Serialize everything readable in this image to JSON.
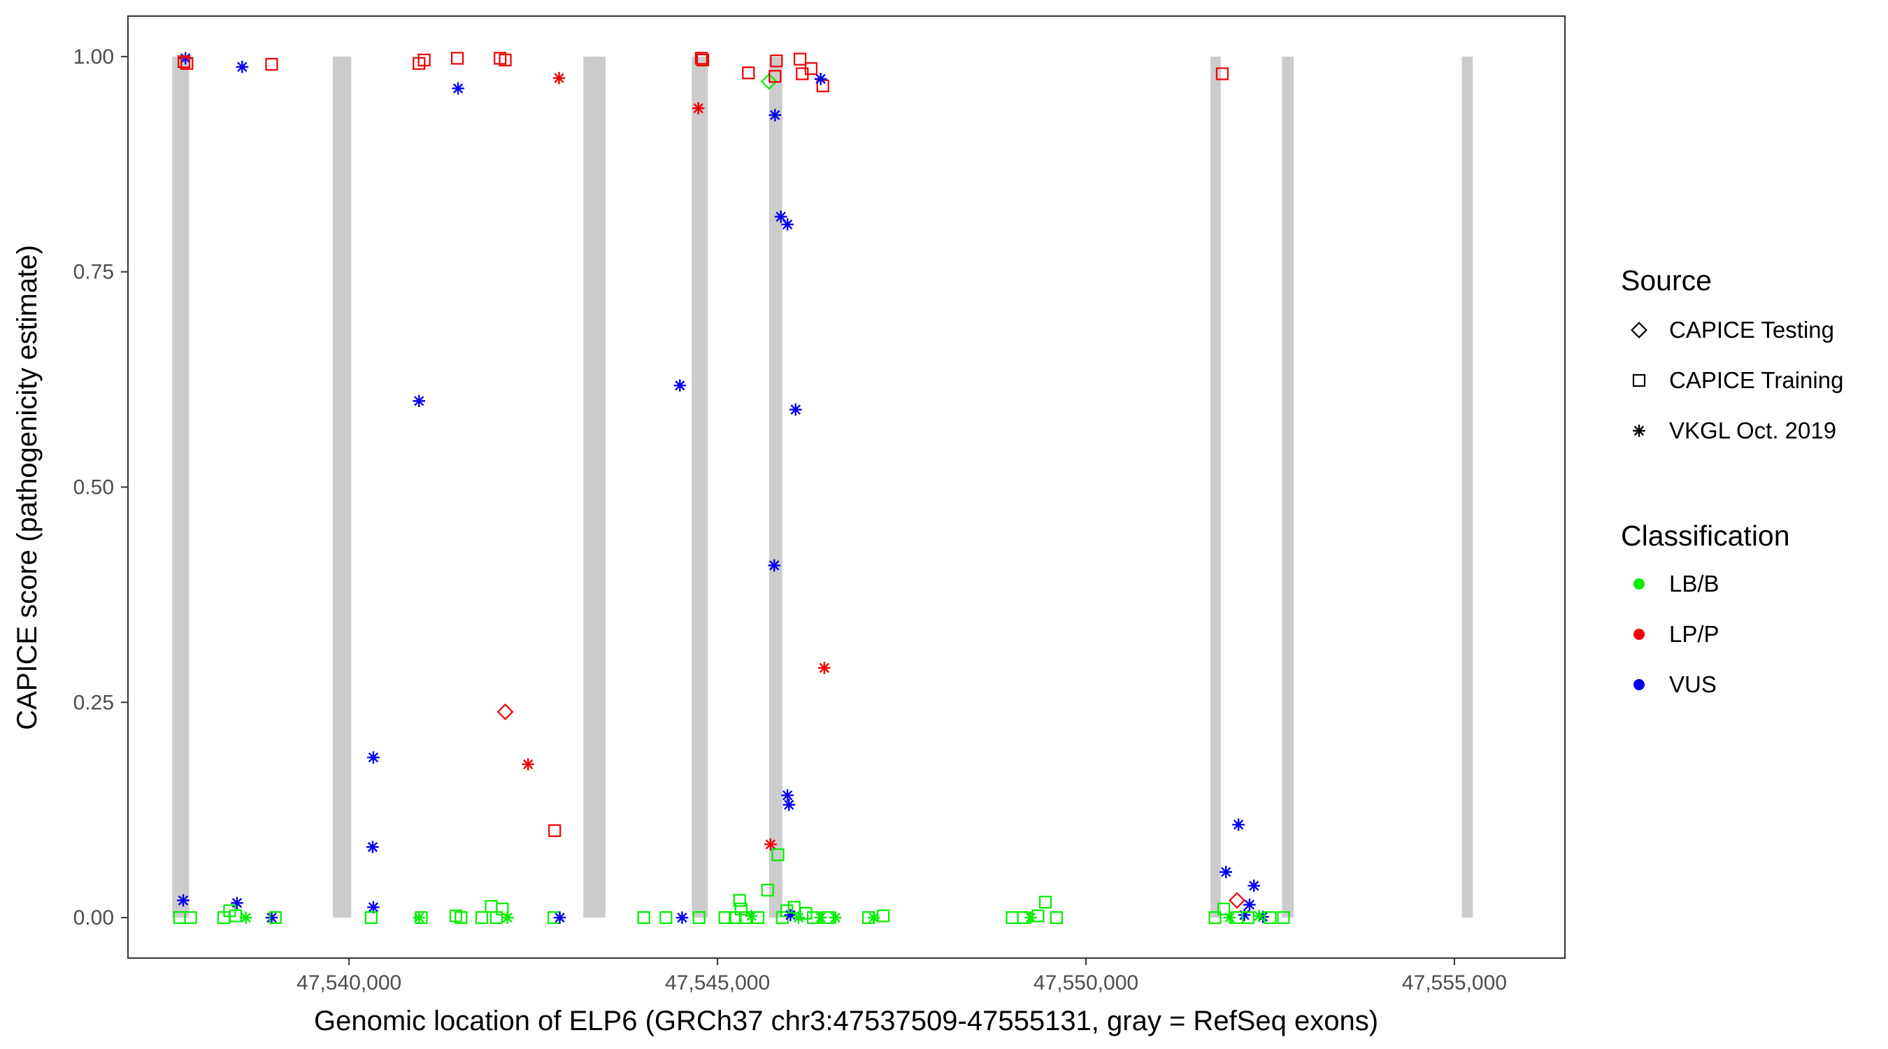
{
  "chart_data": {
    "type": "scatter",
    "title": "",
    "xlabel": "Genomic location of ELP6 (GRCh37 chr3:47537509-47555131, gray = RefSeq exons)",
    "ylabel": "CAPICE score (pathogenicity estimate)",
    "xlim": [
      47537000,
      47556500
    ],
    "ylim": [
      -0.047,
      1.047
    ],
    "x_ticks": [
      47540000,
      47545000,
      47550000,
      47555000
    ],
    "x_tick_labels": [
      "47,540,000",
      "47,545,000",
      "47,550,000",
      "47,555,000"
    ],
    "y_ticks": [
      0,
      0.25,
      0.5,
      0.75,
      1.0
    ],
    "y_tick_labels": [
      "0.00",
      "0.25",
      "0.50",
      "0.75",
      "1.00"
    ],
    "grid": false,
    "exons": [
      [
        47537600,
        47537830
      ],
      [
        47539780,
        47540030
      ],
      [
        47543180,
        47543480
      ],
      [
        47544650,
        47544870
      ],
      [
        47545700,
        47545880
      ],
      [
        47551690,
        47551830
      ],
      [
        47552660,
        47552820
      ],
      [
        47555100,
        47555250
      ]
    ],
    "legend": {
      "position": "right",
      "source_title": "Source",
      "source_items": [
        {
          "label": "CAPICE Testing",
          "shape": "diamond"
        },
        {
          "label": "CAPICE Training",
          "shape": "square"
        },
        {
          "label": "VKGL Oct. 2019",
          "shape": "asterisk"
        }
      ],
      "class_title": "Classification",
      "class_items": [
        {
          "label": "LB/B",
          "color": "#00ee00"
        },
        {
          "label": "LP/P",
          "color": "#ee0000"
        },
        {
          "label": "VUS",
          "color": "#0000ee"
        }
      ]
    },
    "colors": {
      "LB/B": "#00ee00",
      "LP/P": "#ee0000",
      "VUS": "#0000ee",
      "exon": "#cccccc"
    },
    "points": [
      {
        "x": 47537780,
        "y": 0.998,
        "s": "VKGL",
        "c": "VUS"
      },
      {
        "x": 47537760,
        "y": 0.994,
        "s": "Training",
        "c": "LP/P"
      },
      {
        "x": 47537800,
        "y": 0.992,
        "s": "Training",
        "c": "LP/P"
      },
      {
        "x": 47538550,
        "y": 0.988,
        "s": "VKGL",
        "c": "VUS"
      },
      {
        "x": 47538950,
        "y": 0.991,
        "s": "Training",
        "c": "LP/P"
      },
      {
        "x": 47540950,
        "y": 0.992,
        "s": "Training",
        "c": "LP/P"
      },
      {
        "x": 47541020,
        "y": 0.996,
        "s": "Training",
        "c": "LP/P"
      },
      {
        "x": 47541470,
        "y": 0.998,
        "s": "Training",
        "c": "LP/P"
      },
      {
        "x": 47541480,
        "y": 0.963,
        "s": "VKGL",
        "c": "VUS"
      },
      {
        "x": 47542050,
        "y": 0.998,
        "s": "Training",
        "c": "LP/P"
      },
      {
        "x": 47542120,
        "y": 0.996,
        "s": "Training",
        "c": "LP/P"
      },
      {
        "x": 47542850,
        "y": 0.975,
        "s": "VKGL",
        "c": "LP/P"
      },
      {
        "x": 47544780,
        "y": 0.998,
        "s": "Training",
        "c": "LP/P"
      },
      {
        "x": 47544800,
        "y": 0.996,
        "s": "Training",
        "c": "LP/P"
      },
      {
        "x": 47544740,
        "y": 0.94,
        "s": "VKGL",
        "c": "LP/P"
      },
      {
        "x": 47545420,
        "y": 0.981,
        "s": "Training",
        "c": "LP/P"
      },
      {
        "x": 47545700,
        "y": 0.971,
        "s": "Testing",
        "c": "LB/B"
      },
      {
        "x": 47545780,
        "y": 0.977,
        "s": "Training",
        "c": "LP/P"
      },
      {
        "x": 47545800,
        "y": 0.995,
        "s": "Training",
        "c": "LP/P"
      },
      {
        "x": 47546120,
        "y": 0.997,
        "s": "Training",
        "c": "LP/P"
      },
      {
        "x": 47546150,
        "y": 0.98,
        "s": "Training",
        "c": "LP/P"
      },
      {
        "x": 47546270,
        "y": 0.986,
        "s": "Training",
        "c": "LP/P"
      },
      {
        "x": 47546430,
        "y": 0.966,
        "s": "Training",
        "c": "LP/P"
      },
      {
        "x": 47546400,
        "y": 0.974,
        "s": "VKGL",
        "c": "VUS"
      },
      {
        "x": 47545780,
        "y": 0.932,
        "s": "VKGL",
        "c": "VUS"
      },
      {
        "x": 47545860,
        "y": 0.814,
        "s": "VKGL",
        "c": "VUS"
      },
      {
        "x": 47545950,
        "y": 0.805,
        "s": "VKGL",
        "c": "VUS"
      },
      {
        "x": 47551850,
        "y": 0.98,
        "s": "Training",
        "c": "LP/P"
      },
      {
        "x": 47540950,
        "y": 0.6,
        "s": "VKGL",
        "c": "VUS"
      },
      {
        "x": 47544490,
        "y": 0.618,
        "s": "VKGL",
        "c": "VUS"
      },
      {
        "x": 47546060,
        "y": 0.59,
        "s": "VKGL",
        "c": "VUS"
      },
      {
        "x": 47545770,
        "y": 0.409,
        "s": "VKGL",
        "c": "VUS"
      },
      {
        "x": 47546450,
        "y": 0.29,
        "s": "VKGL",
        "c": "LP/P"
      },
      {
        "x": 47542120,
        "y": 0.239,
        "s": "Testing",
        "c": "LP/P"
      },
      {
        "x": 47540330,
        "y": 0.186,
        "s": "VKGL",
        "c": "VUS"
      },
      {
        "x": 47542430,
        "y": 0.178,
        "s": "VKGL",
        "c": "LP/P"
      },
      {
        "x": 47542790,
        "y": 0.101,
        "s": "Training",
        "c": "LP/P"
      },
      {
        "x": 47545950,
        "y": 0.142,
        "s": "VKGL",
        "c": "VUS"
      },
      {
        "x": 47545970,
        "y": 0.131,
        "s": "VKGL",
        "c": "VUS"
      },
      {
        "x": 47545720,
        "y": 0.085,
        "s": "VKGL",
        "c": "LP/P"
      },
      {
        "x": 47545820,
        "y": 0.073,
        "s": "Training",
        "c": "LB/B"
      },
      {
        "x": 47545680,
        "y": 0.032,
        "s": "Training",
        "c": "LB/B"
      },
      {
        "x": 47540320,
        "y": 0.082,
        "s": "VKGL",
        "c": "VUS"
      },
      {
        "x": 47540330,
        "y": 0.012,
        "s": "VKGL",
        "c": "VUS"
      },
      {
        "x": 47537750,
        "y": 0.02,
        "s": "VKGL",
        "c": "VUS"
      },
      {
        "x": 47538480,
        "y": 0.017,
        "s": "VKGL",
        "c": "VUS"
      },
      {
        "x": 47538950,
        "y": 0.0,
        "s": "VKGL",
        "c": "VUS"
      },
      {
        "x": 47552070,
        "y": 0.108,
        "s": "VKGL",
        "c": "VUS"
      },
      {
        "x": 47551900,
        "y": 0.053,
        "s": "VKGL",
        "c": "VUS"
      },
      {
        "x": 47552280,
        "y": 0.037,
        "s": "VKGL",
        "c": "VUS"
      },
      {
        "x": 47552050,
        "y": 0.02,
        "s": "Testing",
        "c": "LP/P"
      },
      {
        "x": 47552220,
        "y": 0.015,
        "s": "VKGL",
        "c": "VUS"
      },
      {
        "x": 47552150,
        "y": 0.003,
        "s": "VKGL",
        "c": "VUS"
      },
      {
        "x": 47552400,
        "y": 0.001,
        "s": "VKGL",
        "c": "VUS"
      },
      {
        "x": 47537700,
        "y": 0.0,
        "s": "Training",
        "c": "LB/B"
      },
      {
        "x": 47537850,
        "y": 0.0,
        "s": "Training",
        "c": "LB/B"
      },
      {
        "x": 47538300,
        "y": 0.0,
        "s": "Training",
        "c": "LB/B"
      },
      {
        "x": 47538380,
        "y": 0.008,
        "s": "Training",
        "c": "LB/B"
      },
      {
        "x": 47538460,
        "y": 0.002,
        "s": "Training",
        "c": "LB/B"
      },
      {
        "x": 47538600,
        "y": 0.0,
        "s": "VKGL",
        "c": "LB/B"
      },
      {
        "x": 47539000,
        "y": 0.0,
        "s": "Training",
        "c": "LB/B"
      },
      {
        "x": 47540300,
        "y": 0.0,
        "s": "Training",
        "c": "LB/B"
      },
      {
        "x": 47540950,
        "y": 0.0,
        "s": "VKGL",
        "c": "LB/B"
      },
      {
        "x": 47540980,
        "y": 0.0,
        "s": "Training",
        "c": "LB/B"
      },
      {
        "x": 47541450,
        "y": 0.002,
        "s": "Training",
        "c": "LB/B"
      },
      {
        "x": 47541520,
        "y": 0.0,
        "s": "Training",
        "c": "LB/B"
      },
      {
        "x": 47541800,
        "y": 0.0,
        "s": "Training",
        "c": "LB/B"
      },
      {
        "x": 47541930,
        "y": 0.013,
        "s": "Training",
        "c": "LB/B"
      },
      {
        "x": 47542000,
        "y": 0.0,
        "s": "Training",
        "c": "LB/B"
      },
      {
        "x": 47542080,
        "y": 0.01,
        "s": "Training",
        "c": "LB/B"
      },
      {
        "x": 47542150,
        "y": 0.0,
        "s": "VKGL",
        "c": "LB/B"
      },
      {
        "x": 47542780,
        "y": 0.0,
        "s": "Training",
        "c": "LB/B"
      },
      {
        "x": 47542860,
        "y": 0.0,
        "s": "VKGL",
        "c": "VUS"
      },
      {
        "x": 47544000,
        "y": 0.0,
        "s": "Training",
        "c": "LB/B"
      },
      {
        "x": 47544300,
        "y": 0.0,
        "s": "Training",
        "c": "LB/B"
      },
      {
        "x": 47544520,
        "y": 0.0,
        "s": "VKGL",
        "c": "VUS"
      },
      {
        "x": 47544750,
        "y": 0.0,
        "s": "Training",
        "c": "LB/B"
      },
      {
        "x": 47545100,
        "y": 0.0,
        "s": "Training",
        "c": "LB/B"
      },
      {
        "x": 47545240,
        "y": 0.0,
        "s": "Training",
        "c": "LB/B"
      },
      {
        "x": 47545300,
        "y": 0.02,
        "s": "Training",
        "c": "LB/B"
      },
      {
        "x": 47545320,
        "y": 0.01,
        "s": "Training",
        "c": "LB/B"
      },
      {
        "x": 47545380,
        "y": 0.0,
        "s": "Training",
        "c": "LB/B"
      },
      {
        "x": 47545460,
        "y": 0.002,
        "s": "VKGL",
        "c": "LB/B"
      },
      {
        "x": 47545550,
        "y": 0.0,
        "s": "Training",
        "c": "LB/B"
      },
      {
        "x": 47545880,
        "y": 0.0,
        "s": "Training",
        "c": "LB/B"
      },
      {
        "x": 47545940,
        "y": 0.008,
        "s": "Training",
        "c": "LB/B"
      },
      {
        "x": 47545990,
        "y": 0.003,
        "s": "VKGL",
        "c": "VUS"
      },
      {
        "x": 47546040,
        "y": 0.012,
        "s": "Training",
        "c": "LB/B"
      },
      {
        "x": 47546100,
        "y": 0.0,
        "s": "VKGL",
        "c": "LB/B"
      },
      {
        "x": 47546200,
        "y": 0.005,
        "s": "Training",
        "c": "LB/B"
      },
      {
        "x": 47546300,
        "y": 0.0,
        "s": "Training",
        "c": "LB/B"
      },
      {
        "x": 47546400,
        "y": 0.0,
        "s": "VKGL",
        "c": "LB/B"
      },
      {
        "x": 47546500,
        "y": 0.0,
        "s": "Training",
        "c": "LB/B"
      },
      {
        "x": 47546600,
        "y": 0.0,
        "s": "VKGL",
        "c": "LB/B"
      },
      {
        "x": 47547050,
        "y": 0.0,
        "s": "Training",
        "c": "LB/B"
      },
      {
        "x": 47547120,
        "y": 0.0,
        "s": "VKGL",
        "c": "LB/B"
      },
      {
        "x": 47547250,
        "y": 0.002,
        "s": "Training",
        "c": "LB/B"
      },
      {
        "x": 47549000,
        "y": 0.0,
        "s": "Training",
        "c": "LB/B"
      },
      {
        "x": 47549150,
        "y": 0.0,
        "s": "Training",
        "c": "LB/B"
      },
      {
        "x": 47549250,
        "y": 0.0,
        "s": "VKGL",
        "c": "LB/B"
      },
      {
        "x": 47549350,
        "y": 0.002,
        "s": "Training",
        "c": "LB/B"
      },
      {
        "x": 47549450,
        "y": 0.018,
        "s": "Training",
        "c": "LB/B"
      },
      {
        "x": 47549600,
        "y": 0.0,
        "s": "Training",
        "c": "LB/B"
      },
      {
        "x": 47551750,
        "y": 0.0,
        "s": "Training",
        "c": "LB/B"
      },
      {
        "x": 47551870,
        "y": 0.01,
        "s": "Training",
        "c": "LB/B"
      },
      {
        "x": 47551950,
        "y": 0.0,
        "s": "VKGL",
        "c": "LB/B"
      },
      {
        "x": 47552050,
        "y": 0.0,
        "s": "Training",
        "c": "LB/B"
      },
      {
        "x": 47552200,
        "y": 0.0,
        "s": "Training",
        "c": "LB/B"
      },
      {
        "x": 47552350,
        "y": 0.002,
        "s": "VKGL",
        "c": "LB/B"
      },
      {
        "x": 47552500,
        "y": 0.0,
        "s": "Training",
        "c": "LB/B"
      },
      {
        "x": 47552680,
        "y": 0.0,
        "s": "Training",
        "c": "LB/B"
      }
    ]
  }
}
